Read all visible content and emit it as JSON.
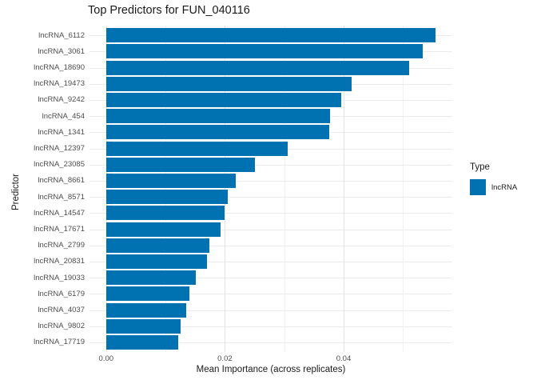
{
  "chart_data": {
    "type": "bar",
    "orientation": "horizontal",
    "title": "Top Predictors for FUN_040116",
    "xlabel": "Mean Importance (across replicates)",
    "ylabel": "Predictor",
    "categories": [
      "lncRNA_6112",
      "lncRNA_3061",
      "lncRNA_18690",
      "lncRNA_19473",
      "lncRNA_9242",
      "lncRNA_454",
      "lncRNA_1341",
      "lncRNA_12397",
      "lncRNA_23085",
      "lncRNA_8661",
      "lncRNA_8571",
      "lncRNA_14547",
      "lncRNA_17671",
      "lncRNA_2799",
      "lncRNA_20831",
      "lncRNA_19033",
      "lncRNA_6179",
      "lncRNA_4037",
      "lncRNA_9802",
      "lncRNA_17719"
    ],
    "values": [
      0.0555,
      0.0533,
      0.051,
      0.0413,
      0.0396,
      0.0377,
      0.0376,
      0.0306,
      0.025,
      0.0218,
      0.0205,
      0.02,
      0.0193,
      0.0174,
      0.017,
      0.0151,
      0.014,
      0.0135,
      0.0125,
      0.0122
    ],
    "xlim": [
      -0.0028,
      0.0583
    ],
    "xticks": [
      0.0,
      0.02,
      0.04
    ],
    "xtick_labels": [
      "0.00",
      "0.02",
      "0.04"
    ],
    "minor_ticks": [
      0.01,
      0.03,
      0.05
    ],
    "grid": true,
    "bar_color": "#0072B2",
    "legend_position": "right",
    "legend": {
      "title": "Type",
      "items": [
        {
          "label": "lncRNA",
          "color": "#0072B2"
        }
      ]
    }
  }
}
